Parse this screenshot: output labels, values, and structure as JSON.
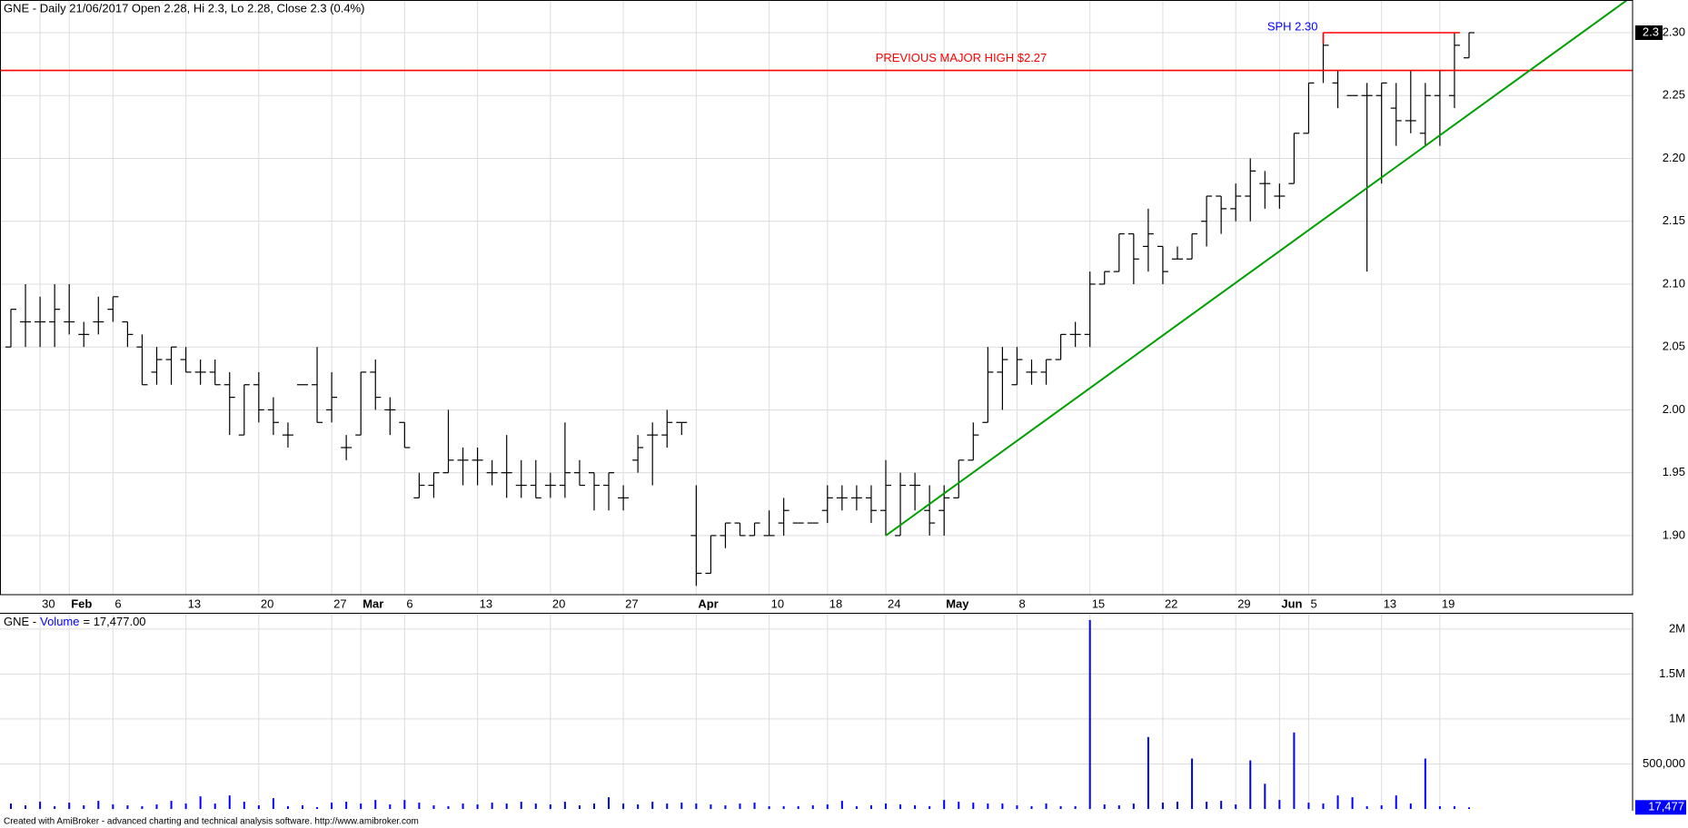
{
  "chart_data": [
    {
      "type": "ohlc",
      "title": "GNE - Daily 21/06/2017 Open 2.28, Hi 2.3, Lo 2.28, Close 2.3 (0.4%)",
      "color": "#000000",
      "open": [
        2.05,
        2.07,
        2.07,
        2.07,
        2.07,
        2.06,
        2.07,
        2.08,
        2.07,
        2.05,
        2.03,
        2.04,
        2.04,
        2.03,
        2.03,
        2.02,
        1.98,
        2.02,
        2.0,
        1.98,
        2.02,
        2.02,
        2.0,
        1.97,
        1.98,
        2.03,
        2.0,
        1.99,
        1.93,
        1.94,
        1.95,
        1.96,
        1.96,
        1.95,
        1.95,
        1.94,
        1.94,
        1.94,
        1.94,
        1.95,
        1.95,
        1.94,
        1.93,
        1.96,
        1.98,
        1.98,
        1.99,
        1.9,
        1.87,
        1.9,
        1.91,
        1.9,
        1.9,
        1.91,
        1.91,
        1.91,
        1.92,
        1.93,
        1.93,
        1.93,
        1.92,
        1.9,
        1.94,
        1.92,
        1.92,
        1.93,
        1.96,
        1.99,
        2.03,
        2.02,
        2.03,
        2.03,
        2.04,
        2.06,
        2.06,
        2.1,
        2.11,
        2.14,
        2.13,
        2.13,
        2.12,
        2.12,
        2.15,
        2.17,
        2.16,
        2.17,
        2.18,
        2.17,
        2.18,
        2.22,
        2.27,
        2.26,
        2.25,
        2.25,
        2.25,
        2.24,
        2.23,
        2.22,
        2.25,
        2.25,
        2.28
      ],
      "high": [
        2.08,
        2.1,
        2.09,
        2.1,
        2.1,
        2.07,
        2.09,
        2.09,
        2.07,
        2.06,
        2.05,
        2.05,
        2.05,
        2.04,
        2.04,
        2.03,
        2.02,
        2.03,
        2.01,
        1.99,
        2.02,
        2.05,
        2.03,
        1.98,
        2.03,
        2.04,
        2.01,
        1.99,
        1.95,
        1.95,
        2.0,
        1.97,
        1.97,
        1.96,
        1.98,
        1.96,
        1.96,
        1.95,
        1.99,
        1.96,
        1.95,
        1.95,
        1.94,
        1.98,
        1.99,
        2.0,
        1.99,
        1.94,
        1.9,
        1.91,
        1.91,
        1.91,
        1.92,
        1.93,
        1.91,
        1.91,
        1.94,
        1.94,
        1.94,
        1.94,
        1.96,
        1.95,
        1.95,
        1.94,
        1.94,
        1.96,
        1.99,
        2.05,
        2.05,
        2.05,
        2.04,
        2.04,
        2.06,
        2.07,
        2.11,
        2.11,
        2.14,
        2.14,
        2.16,
        2.13,
        2.13,
        2.14,
        2.17,
        2.17,
        2.18,
        2.2,
        2.19,
        2.18,
        2.22,
        2.26,
        2.3,
        2.27,
        2.25,
        2.26,
        2.26,
        2.26,
        2.27,
        2.26,
        2.27,
        2.3,
        2.3
      ],
      "low": [
        2.05,
        2.05,
        2.05,
        2.05,
        2.06,
        2.05,
        2.06,
        2.07,
        2.05,
        2.02,
        2.02,
        2.02,
        2.03,
        2.02,
        2.02,
        1.98,
        1.98,
        1.99,
        1.98,
        1.97,
        2.02,
        1.99,
        1.99,
        1.96,
        1.98,
        2.0,
        1.98,
        1.97,
        1.93,
        1.93,
        1.95,
        1.94,
        1.94,
        1.94,
        1.93,
        1.93,
        1.93,
        1.93,
        1.93,
        1.94,
        1.92,
        1.92,
        1.92,
        1.95,
        1.94,
        1.97,
        1.98,
        1.86,
        1.87,
        1.89,
        1.9,
        1.9,
        1.9,
        1.9,
        1.91,
        1.91,
        1.91,
        1.92,
        1.92,
        1.91,
        1.9,
        1.9,
        1.92,
        1.9,
        1.9,
        1.93,
        1.96,
        1.99,
        2.0,
        2.02,
        2.02,
        2.02,
        2.04,
        2.05,
        2.05,
        2.1,
        2.11,
        2.1,
        2.11,
        2.1,
        2.12,
        2.12,
        2.13,
        2.14,
        2.15,
        2.15,
        2.16,
        2.16,
        2.18,
        2.22,
        2.26,
        2.24,
        2.25,
        2.11,
        2.18,
        2.21,
        2.22,
        2.21,
        2.21,
        2.24,
        2.28
      ],
      "close": [
        2.08,
        2.07,
        2.07,
        2.08,
        2.07,
        2.06,
        2.07,
        2.09,
        2.06,
        2.02,
        2.04,
        2.05,
        2.03,
        2.03,
        2.02,
        2.01,
        2.02,
        2.0,
        1.99,
        1.98,
        2.02,
        1.99,
        2.01,
        1.97,
        2.03,
        2.01,
        2.0,
        1.97,
        1.94,
        1.95,
        1.96,
        1.96,
        1.96,
        1.95,
        1.95,
        1.94,
        1.93,
        1.94,
        1.95,
        1.94,
        1.94,
        1.95,
        1.93,
        1.97,
        1.98,
        1.99,
        1.99,
        1.87,
        1.9,
        1.91,
        1.9,
        1.91,
        1.9,
        1.92,
        1.91,
        1.91,
        1.93,
        1.93,
        1.93,
        1.92,
        1.94,
        1.94,
        1.94,
        1.91,
        1.93,
        1.96,
        1.98,
        2.03,
        2.04,
        2.04,
        2.03,
        2.04,
        2.06,
        2.06,
        2.1,
        2.11,
        2.14,
        2.12,
        2.14,
        2.11,
        2.12,
        2.14,
        2.17,
        2.16,
        2.17,
        2.19,
        2.18,
        2.17,
        2.22,
        2.26,
        2.29,
        2.27,
        2.25,
        2.25,
        2.26,
        2.23,
        2.23,
        2.25,
        2.27,
        2.29,
        2.3
      ],
      "ylim": [
        1.853,
        2.326
      ],
      "yticks": [
        {
          "value": 1.9,
          "label": "1.90"
        },
        1.95,
        {
          "value": 2.0,
          "label": "2.00"
        },
        2.05,
        {
          "value": 2.1,
          "label": "2.10"
        },
        2.15,
        {
          "value": 2.2,
          "label": "2.20"
        },
        2.25,
        {
          "value": 2.3,
          "label": "2.30"
        }
      ],
      "xticks": [
        {
          "value": 2,
          "label": "30"
        },
        {
          "value": 7,
          "label": "6"
        },
        {
          "value": 12,
          "label": "13"
        },
        {
          "value": 17,
          "label": "20"
        },
        {
          "value": 22,
          "label": "27"
        },
        {
          "value": 27,
          "label": "6"
        },
        {
          "value": 32,
          "label": "13"
        },
        {
          "value": 37,
          "label": "20"
        },
        {
          "value": 42,
          "label": "27"
        },
        {
          "value": 52,
          "label": "10"
        },
        {
          "value": 56,
          "label": "18"
        },
        {
          "value": 60,
          "label": "24"
        },
        {
          "value": 69,
          "label": "8"
        },
        {
          "value": 74,
          "label": "15"
        },
        {
          "value": 79,
          "label": "22"
        },
        {
          "value": 84,
          "label": "29"
        },
        {
          "value": 89,
          "label": "5"
        },
        {
          "value": 94,
          "label": "13"
        },
        {
          "value": 98,
          "label": "19"
        }
      ],
      "month_ticks": [
        {
          "value": 4,
          "label": "Feb"
        },
        {
          "value": 24,
          "label": "Mar"
        },
        {
          "value": 47,
          "label": "Apr"
        },
        {
          "value": 64,
          "label": "May"
        },
        {
          "value": 87,
          "label": "Jun"
        }
      ],
      "grid": true,
      "levels": [
        {
          "label": "PREVIOUS MAJOR HIGH $2.27",
          "value": 2.27,
          "color": "#ff0000",
          "label_color": "#ff0000"
        },
        {
          "label": "SPH 2.30",
          "value": 2.3,
          "color": "#ff0000",
          "label_color": "#0000ff",
          "from": 90,
          "to": 99
        }
      ],
      "trendline": {
        "color": "#00a000",
        "points": [
          {
            "x": 60,
            "y": 1.9
          },
          {
            "x": 97,
            "y": 2.21
          }
        ]
      },
      "last_label": {
        "value": 2.3,
        "label": "2.3"
      }
    },
    {
      "type": "bar",
      "title_parts": [
        "GNE -",
        "Volume",
        "= 17,477.00"
      ],
      "color": "#0000ff",
      "values": [
        60000,
        40000,
        80000,
        30000,
        70000,
        40000,
        90000,
        50000,
        40000,
        30000,
        50000,
        90000,
        60000,
        140000,
        60000,
        150000,
        80000,
        40000,
        120000,
        30000,
        40000,
        20000,
        70000,
        80000,
        60000,
        100000,
        50000,
        100000,
        70000,
        40000,
        30000,
        60000,
        50000,
        70000,
        60000,
        80000,
        60000,
        50000,
        80000,
        40000,
        60000,
        130000,
        60000,
        50000,
        80000,
        60000,
        70000,
        60000,
        50000,
        40000,
        60000,
        70000,
        30000,
        30000,
        30000,
        40000,
        50000,
        90000,
        30000,
        40000,
        60000,
        50000,
        40000,
        30000,
        100000,
        80000,
        70000,
        60000,
        60000,
        40000,
        30000,
        60000,
        30000,
        30000,
        2100000,
        50000,
        40000,
        60000,
        800000,
        70000,
        80000,
        560000,
        80000,
        90000,
        50000,
        540000,
        280000,
        100000,
        850000,
        70000,
        60000,
        150000,
        130000,
        30000,
        40000,
        150000,
        60000,
        560000,
        30000,
        30000,
        17477
      ],
      "ylim": [
        -20000,
        2180000
      ],
      "yticks": [
        {
          "value": 500000,
          "label": "500,000"
        },
        {
          "value": 1000000,
          "label": "1M"
        },
        {
          "value": 1500000,
          "label": "1.5M"
        },
        {
          "value": 2000000,
          "label": "2M"
        }
      ],
      "grid": true,
      "last_label": {
        "value": 17477,
        "label": "17,477"
      }
    }
  ],
  "footer": "Created with AmiBroker - advanced charting and technical analysis software. http://www.amibroker.com"
}
